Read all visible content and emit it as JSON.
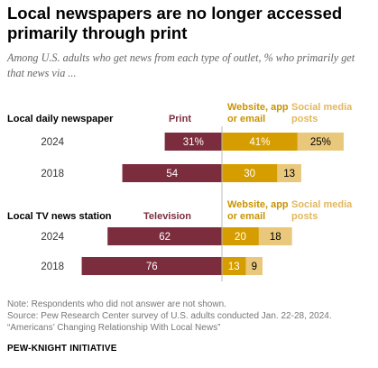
{
  "title": "Local newspapers are no longer accessed primarily through print",
  "subtitle": "Among U.S. adults who get news from each type of outlet, % who primarily get that news via ...",
  "chart_data": [
    {
      "type": "bar",
      "group_label": "Local daily newspaper",
      "legend": [
        "Print",
        "Website, app or email",
        "Social media posts"
      ],
      "categories": [
        "2024",
        "2018"
      ],
      "series": [
        {
          "name": "Print",
          "color": "#7b2d3e",
          "values": [
            31,
            54
          ],
          "labels": [
            "31%",
            "54"
          ]
        },
        {
          "name": "Website, app or email",
          "color": "#d69d00",
          "values": [
            41,
            30
          ],
          "labels": [
            "41%",
            "30"
          ]
        },
        {
          "name": "Social media posts",
          "color": "#e9c87c",
          "values": [
            25,
            13
          ],
          "labels": [
            "25%",
            "13"
          ]
        }
      ]
    },
    {
      "type": "bar",
      "group_label": "Local TV news station",
      "legend": [
        "Television",
        "Website, app or email",
        "Social media posts"
      ],
      "categories": [
        "2024",
        "2018"
      ],
      "series": [
        {
          "name": "Television",
          "color": "#7b2d3e",
          "values": [
            62,
            76
          ],
          "labels": [
            "62",
            "76"
          ]
        },
        {
          "name": "Website, app or email",
          "color": "#d69d00",
          "values": [
            20,
            13
          ],
          "labels": [
            "20",
            "13"
          ]
        },
        {
          "name": "Social media posts",
          "color": "#e9c87c",
          "values": [
            18,
            9
          ],
          "labels": [
            "18",
            "9"
          ]
        }
      ]
    }
  ],
  "notes": [
    "Note: Respondents who did not answer are not shown.",
    "Source: Pew Research Center survey of U.S. adults conducted Jan. 22-28, 2024.",
    "“Americans’ Changing Relationship With Local News”"
  ],
  "source_label": "PEW-KNIGHT INITIATIVE",
  "colors": {
    "print": "#7b2d3e",
    "digital": "#d69d00",
    "social": "#e9c87c",
    "digital_text": "#c99300",
    "social_text": "#e2b75d"
  }
}
